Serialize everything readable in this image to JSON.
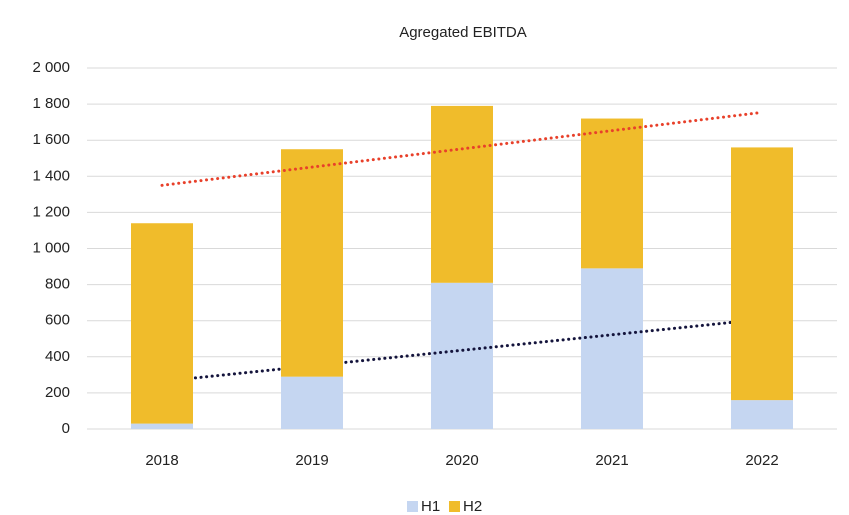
{
  "chart_data": {
    "type": "stacked_bar",
    "title": "Agregated EBITDA",
    "categories": [
      "2018",
      "2019",
      "2020",
      "2021",
      "2022"
    ],
    "series": [
      {
        "name": "H1",
        "color": "#c5d6f1",
        "values": [
          30,
          290,
          810,
          890,
          160
        ],
        "trendline_color": "#14143c"
      },
      {
        "name": "H2",
        "color": "#f0bc2b",
        "values": [
          1110,
          1260,
          980,
          830,
          1400
        ],
        "trendline_color": "#e8402a"
      }
    ],
    "ylim": [
      0,
      2000
    ],
    "yticks": [
      0,
      200,
      400,
      600,
      800,
      {
        "value": 1000,
        "label": "1 000"
      },
      {
        "value": 1200,
        "label": "1 200"
      },
      {
        "value": 1400,
        "label": "1 400"
      },
      {
        "value": 1600,
        "label": "1 600"
      },
      {
        "value": 1800,
        "label": "1 800"
      },
      {
        "value": 2000,
        "label": "2 000"
      }
    ],
    "grid": true,
    "trendlines": true,
    "legend": "bottom"
  }
}
